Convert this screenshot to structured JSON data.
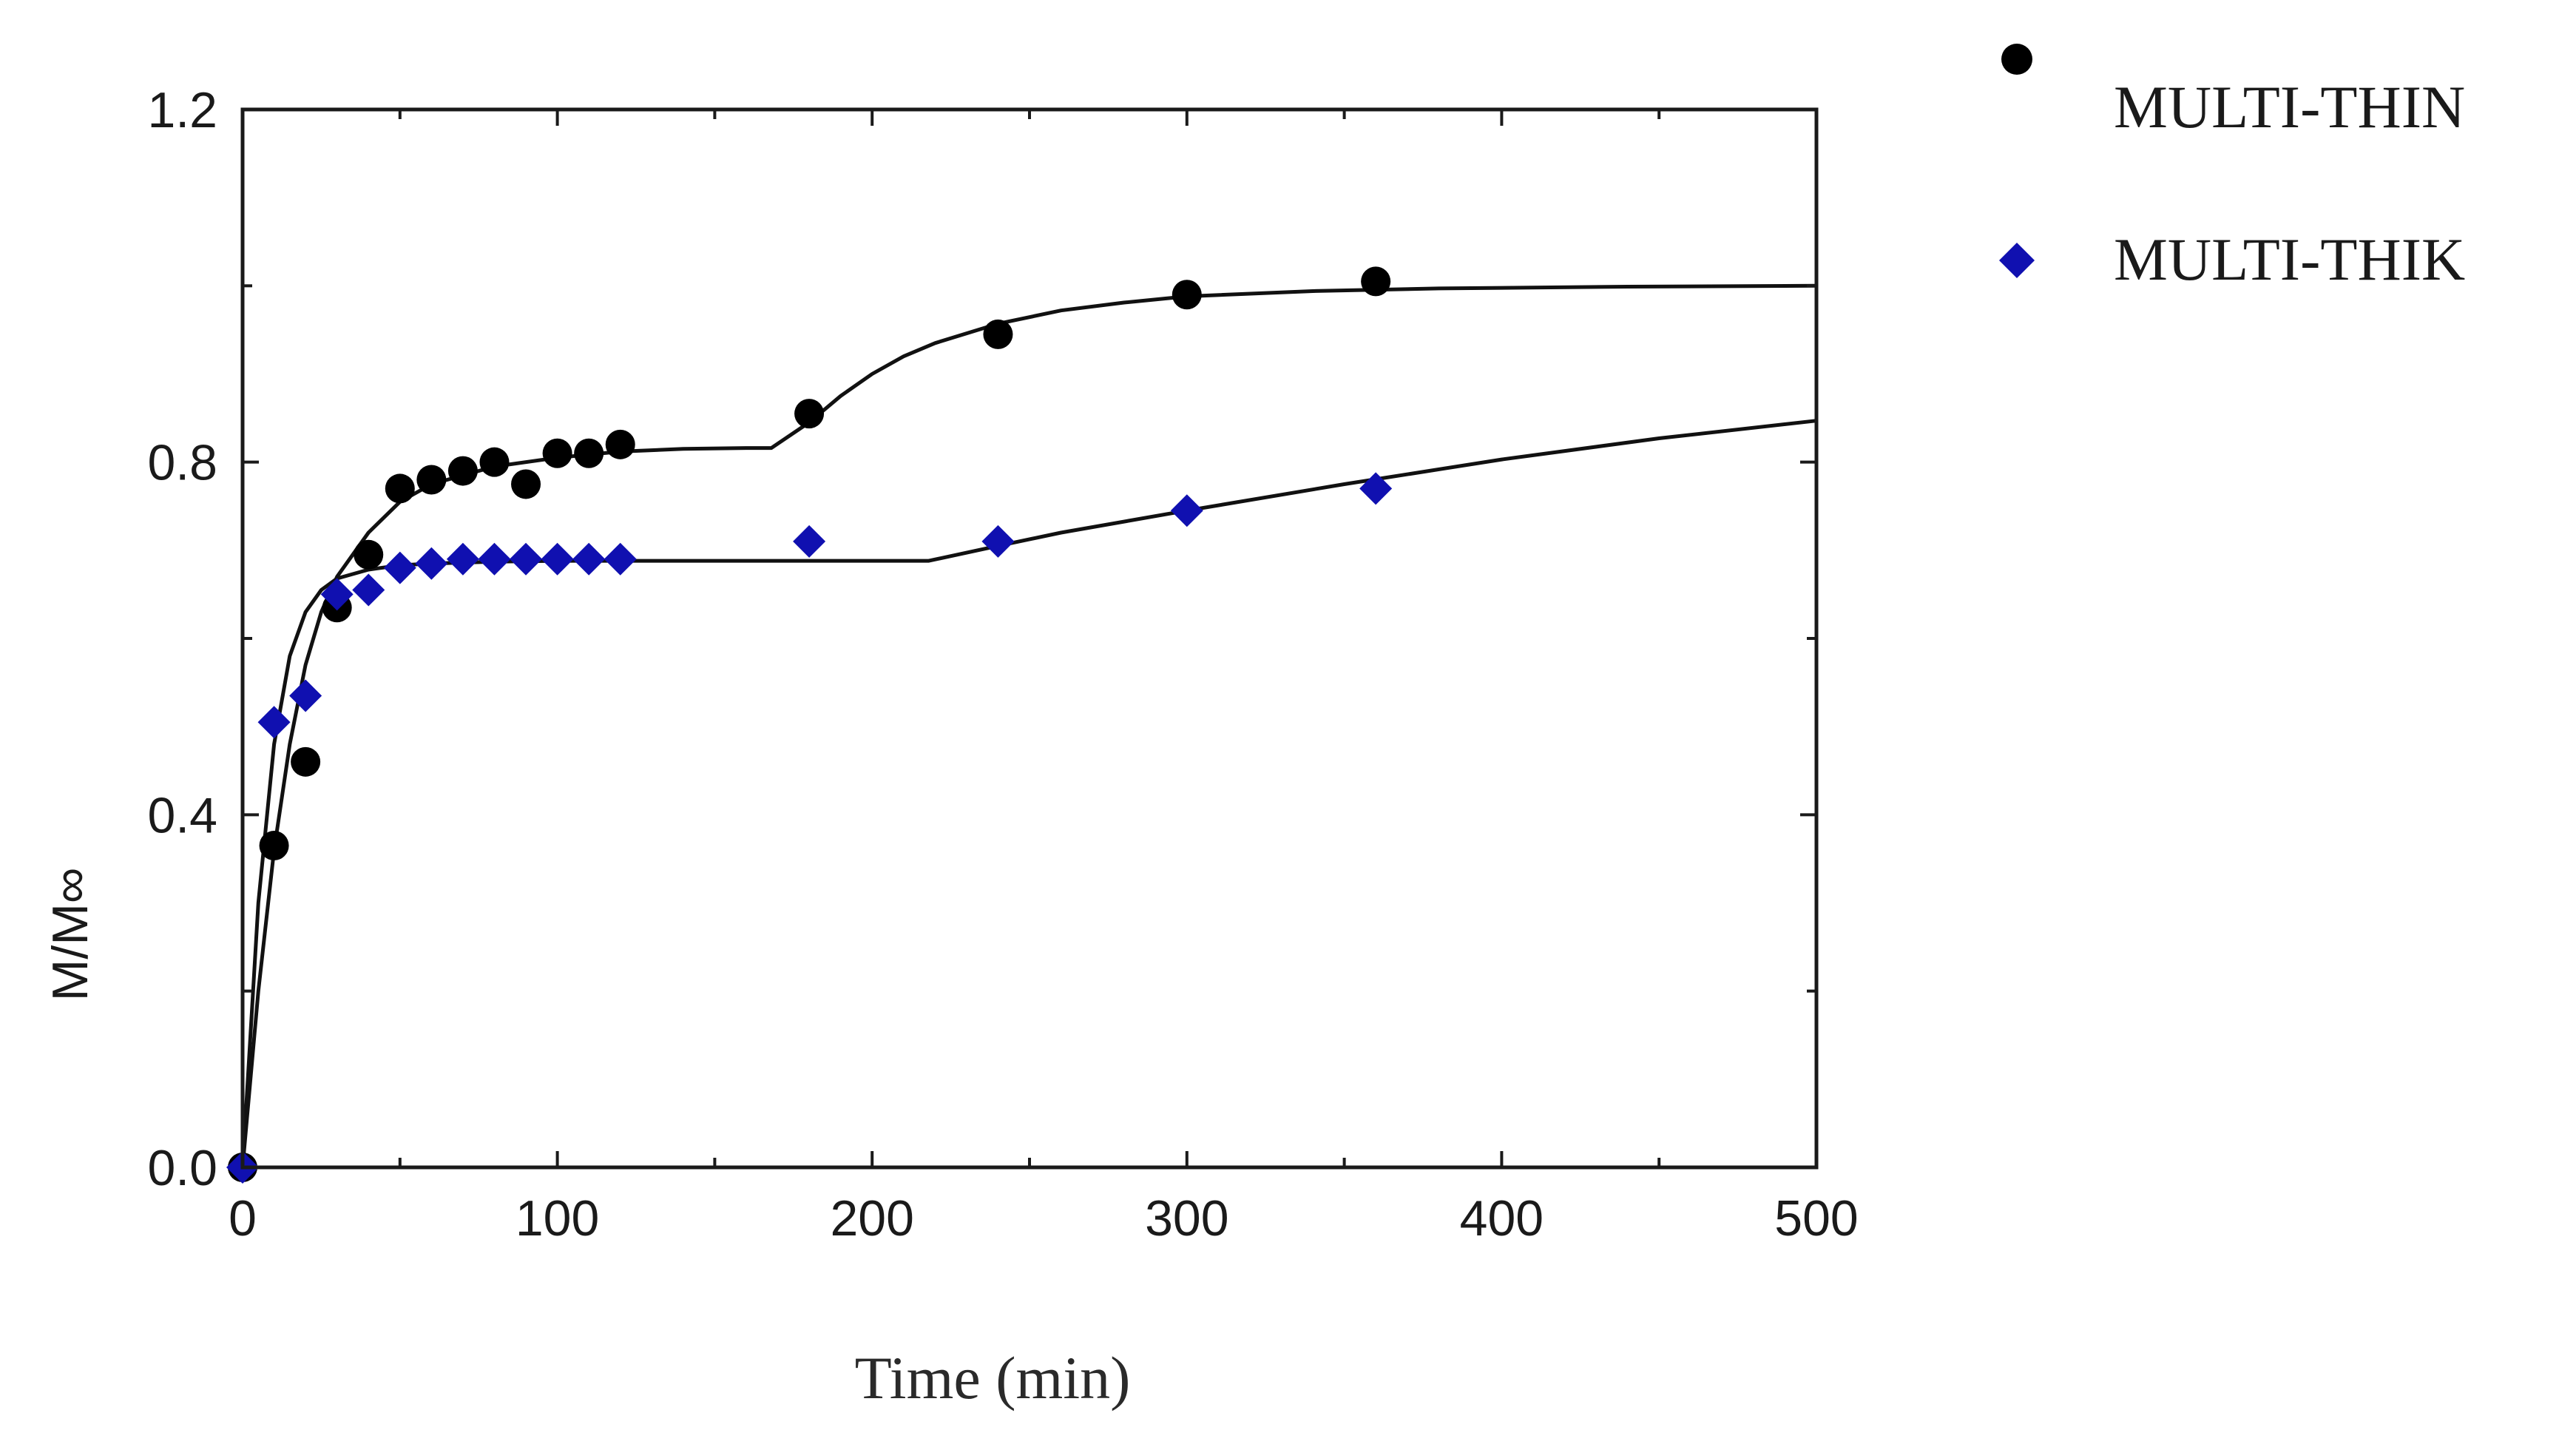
{
  "chart_data": {
    "type": "scatter",
    "title": "",
    "xlabel": "Time (min)",
    "ylabel": "M/M∞",
    "xlim": [
      0,
      500
    ],
    "ylim": [
      0,
      1.2
    ],
    "x_ticks": [
      0,
      100,
      200,
      300,
      400,
      500
    ],
    "x_tick_labels": [
      "0",
      "100",
      "200",
      "300",
      "400",
      "500"
    ],
    "y_ticks": [
      0,
      0.4,
      0.8,
      1.2
    ],
    "y_tick_labels": [
      "0.0",
      "0.4",
      "0.8",
      "1.2"
    ],
    "legend_position": "top-right, outside plot",
    "series": [
      {
        "name": "MULTI-THIN",
        "marker": "circle",
        "color": "#000000",
        "x": [
          0,
          10,
          20,
          30,
          40,
          50,
          60,
          70,
          80,
          90,
          100,
          110,
          120,
          180,
          240,
          300,
          360
        ],
        "y": [
          0.0,
          0.365,
          0.46,
          0.635,
          0.695,
          0.77,
          0.78,
          0.79,
          0.8,
          0.775,
          0.81,
          0.81,
          0.82,
          0.855,
          0.945,
          0.99,
          1.005
        ],
        "fit": {
          "x": [
            0,
            5,
            10,
            15,
            20,
            25,
            30,
            40,
            50,
            60,
            80,
            100,
            120,
            140,
            160,
            168,
            180,
            190,
            200,
            210,
            220,
            240,
            260,
            280,
            300,
            340,
            380,
            440,
            500
          ],
          "y": [
            0.0,
            0.2,
            0.36,
            0.48,
            0.57,
            0.63,
            0.67,
            0.72,
            0.755,
            0.775,
            0.795,
            0.805,
            0.812,
            0.815,
            0.816,
            0.816,
            0.845,
            0.875,
            0.9,
            0.92,
            0.935,
            0.957,
            0.972,
            0.981,
            0.988,
            0.994,
            0.997,
            0.999,
            1.0
          ]
        }
      },
      {
        "name": "MULTI-THIK",
        "marker": "diamond",
        "color": "#1010b0",
        "x": [
          0,
          10,
          20,
          30,
          40,
          50,
          60,
          70,
          80,
          90,
          100,
          110,
          120,
          180,
          240,
          300,
          360
        ],
        "y": [
          0.0,
          0.505,
          0.535,
          0.65,
          0.655,
          0.68,
          0.685,
          0.69,
          0.69,
          0.69,
          0.69,
          0.69,
          0.69,
          0.71,
          0.71,
          0.745,
          0.77
        ],
        "fit": {
          "x": [
            0,
            5,
            10,
            15,
            20,
            25,
            30,
            40,
            50,
            60,
            80,
            100,
            120,
            150,
            180,
            200,
            218,
            240,
            260,
            300,
            350,
            400,
            450,
            500
          ],
          "y": [
            0.0,
            0.3,
            0.48,
            0.58,
            0.63,
            0.655,
            0.668,
            0.678,
            0.683,
            0.685,
            0.687,
            0.688,
            0.688,
            0.688,
            0.688,
            0.688,
            0.688,
            0.705,
            0.72,
            0.745,
            0.775,
            0.803,
            0.827,
            0.847
          ]
        }
      }
    ]
  }
}
